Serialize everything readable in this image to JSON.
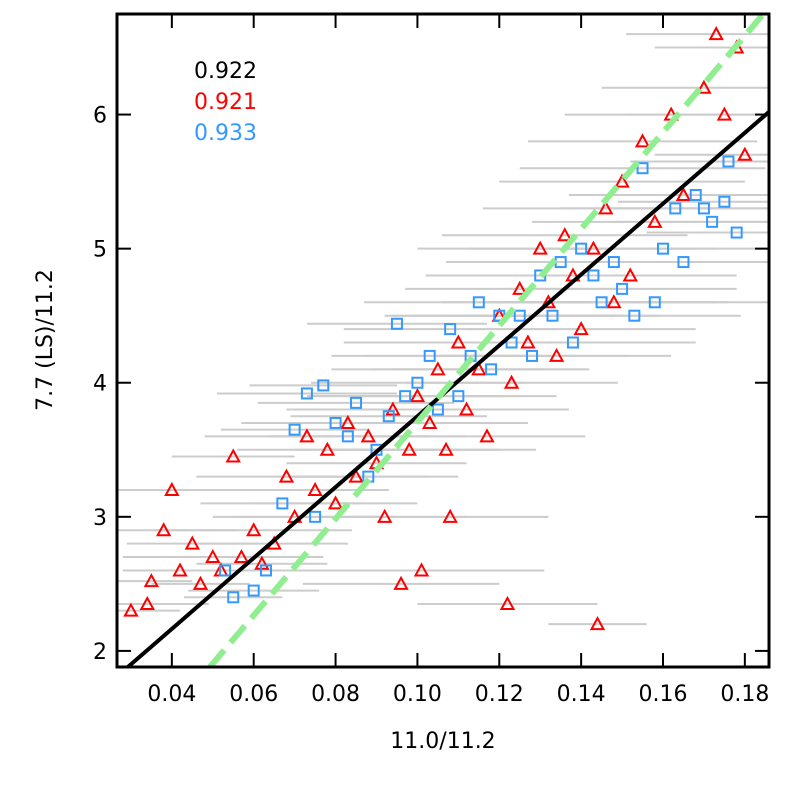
{
  "chart_data": {
    "type": "scatter",
    "x_label": "11.0/11.2",
    "y_label": "7.7 (LS)/11.2",
    "xlim": [
      0.0266,
      0.1859
    ],
    "ylim": [
      1.88,
      6.75
    ],
    "xticks": [
      0.04,
      0.06,
      0.08,
      {
        "value": 0.1,
        "label": "0.10"
      },
      0.12,
      0.14,
      0.16,
      0.18
    ],
    "yticks": [
      2,
      3,
      4,
      5,
      6
    ],
    "error_color": "#cccccc",
    "series": [
      {
        "color": "#ff0000",
        "marker": "triangle",
        "x": [
          0.03,
          0.034,
          0.035,
          0.038,
          0.04,
          0.042,
          0.045,
          0.047,
          0.05,
          0.052,
          0.055,
          0.057,
          0.06,
          0.062,
          0.065,
          0.068,
          0.07,
          0.073,
          0.075,
          0.078,
          0.08,
          0.083,
          0.085,
          0.088,
          0.09,
          0.092,
          0.094,
          0.096,
          0.098,
          0.1,
          0.101,
          0.103,
          0.105,
          0.107,
          0.108,
          0.11,
          0.112,
          0.115,
          0.117,
          0.12,
          0.122,
          0.123,
          0.125,
          0.127,
          0.13,
          0.132,
          0.134,
          0.136,
          0.138,
          0.14,
          0.143,
          0.144,
          0.146,
          0.148,
          0.15,
          0.152,
          0.155,
          0.158,
          0.162,
          0.165,
          0.17,
          0.173,
          0.175,
          0.178,
          0.18
        ],
        "y": [
          2.3,
          2.35,
          2.52,
          2.9,
          3.2,
          2.6,
          2.8,
          2.5,
          2.7,
          2.6,
          3.45,
          2.7,
          2.9,
          2.65,
          2.8,
          3.3,
          3.0,
          3.6,
          3.2,
          3.5,
          3.1,
          3.7,
          3.3,
          3.6,
          3.4,
          3.0,
          3.8,
          2.5,
          3.5,
          3.9,
          2.6,
          3.7,
          4.1,
          3.5,
          3.0,
          4.3,
          3.8,
          4.1,
          3.6,
          4.5,
          2.35,
          4.0,
          4.7,
          4.3,
          5.0,
          4.6,
          4.2,
          5.1,
          4.8,
          4.4,
          5.0,
          2.2,
          5.3,
          4.6,
          5.5,
          4.8,
          5.8,
          5.2,
          6.0,
          5.4,
          6.2,
          6.6,
          6.0,
          6.5,
          5.7
        ],
        "xerr": [
          0.012,
          0.015,
          0.01,
          0.018,
          0.02,
          0.014,
          0.016,
          0.012,
          0.022,
          0.018,
          0.015,
          0.02,
          0.024,
          0.016,
          0.018,
          0.022,
          0.02,
          0.025,
          0.018,
          0.022,
          0.02,
          0.026,
          0.018,
          0.024,
          0.022,
          0.02,
          0.026,
          0.024,
          0.022,
          0.025,
          0.03,
          0.024,
          0.026,
          0.022,
          0.024,
          0.028,
          0.025,
          0.026,
          0.024,
          0.028,
          0.022,
          0.026,
          0.028,
          0.024,
          0.03,
          0.026,
          0.028,
          0.03,
          0.026,
          0.028,
          0.03,
          0.012,
          0.03,
          0.028,
          0.03,
          0.026,
          0.028,
          0.03,
          0.026,
          0.028,
          0.025,
          0.022,
          0.024,
          0.02,
          0.022
        ]
      },
      {
        "color": "#3399ff",
        "marker": "square",
        "x": [
          0.053,
          0.055,
          0.06,
          0.063,
          0.067,
          0.07,
          0.073,
          0.075,
          0.077,
          0.08,
          0.083,
          0.085,
          0.088,
          0.09,
          0.093,
          0.095,
          0.097,
          0.1,
          0.103,
          0.105,
          0.108,
          0.11,
          0.113,
          0.115,
          0.118,
          0.12,
          0.123,
          0.125,
          0.128,
          0.13,
          0.133,
          0.135,
          0.138,
          0.14,
          0.143,
          0.145,
          0.148,
          0.15,
          0.153,
          0.155,
          0.158,
          0.16,
          0.163,
          0.165,
          0.168,
          0.17,
          0.172,
          0.175,
          0.176,
          0.178
        ],
        "y": [
          2.6,
          2.4,
          2.45,
          2.6,
          3.1,
          3.65,
          3.92,
          3.0,
          3.98,
          3.7,
          3.6,
          3.85,
          3.3,
          3.5,
          3.75,
          4.44,
          3.9,
          4.0,
          4.2,
          3.8,
          4.4,
          3.9,
          4.2,
          4.6,
          4.1,
          4.5,
          4.3,
          4.5,
          4.2,
          4.8,
          4.5,
          4.9,
          4.3,
          5.0,
          4.8,
          4.6,
          4.9,
          4.7,
          4.5,
          5.6,
          4.6,
          5.0,
          5.3,
          4.9,
          5.4,
          5.3,
          5.2,
          5.35,
          5.65,
          5.12
        ],
        "xerr": [
          0.014,
          0.012,
          0.016,
          0.018,
          0.02,
          0.018,
          0.022,
          0.02,
          0.018,
          0.022,
          0.02,
          0.024,
          0.022,
          0.02,
          0.024,
          0.022,
          0.024,
          0.026,
          0.024,
          0.022,
          0.026,
          0.024,
          0.026,
          0.028,
          0.024,
          0.026,
          0.028,
          0.026,
          0.024,
          0.028,
          0.026,
          0.028,
          0.03,
          0.028,
          0.03,
          0.028,
          0.03,
          0.028,
          0.026,
          0.03,
          0.028,
          0.03,
          0.028,
          0.026,
          0.028,
          0.026,
          0.024,
          0.026,
          0.024,
          0.022
        ]
      }
    ],
    "lines": [
      {
        "color": "#000000",
        "dash": false,
        "x": [
          0.0266,
          0.1859
        ],
        "y": [
          1.81,
          6.02
        ]
      },
      {
        "color": "#90ee90",
        "dash": true,
        "x": [
          0.0493,
          0.1845
        ],
        "y": [
          1.88,
          6.75
        ]
      }
    ],
    "annotations": [
      {
        "text": "0.922",
        "color": "#000000"
      },
      {
        "text": "0.921",
        "color": "#ff0000"
      },
      {
        "text": "0.933",
        "color": "#3399ff"
      }
    ]
  }
}
